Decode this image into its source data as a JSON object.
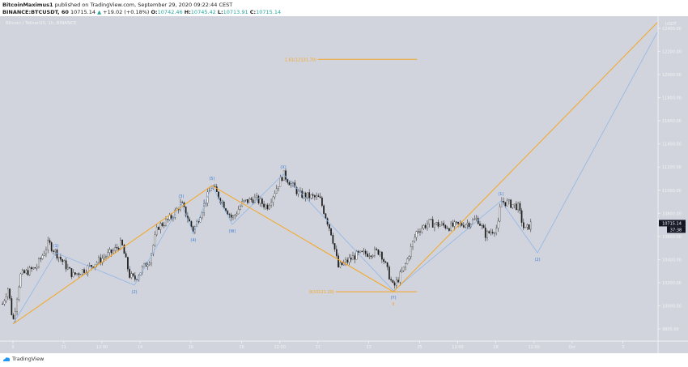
{
  "header": {
    "author": "BitcoinMaximus1",
    "published": "published on TradingView.com, September 29, 2020 09:22:44 CEST",
    "symbol": "BINANCE:BTCUSDT, 60",
    "last": "10715.14",
    "change": "+19.02 (+0.18%)",
    "o_label": "O:",
    "o": "10742.46",
    "h_label": "H:",
    "h": "10745.42",
    "l_label": "L:",
    "l": "10713.91",
    "c_label": "C:",
    "c": "10715.14"
  },
  "chart_title": "Bitcoin / TetherUS, 1h, BINANCE",
  "colors": {
    "bg": "#d1d4dc",
    "orange": "#f5a623",
    "blue": "#8fb6e8",
    "label_blue": "#3d7fd8",
    "candle": "#1a1a1a"
  },
  "chart_data": {
    "type": "candlestick",
    "price_unit": "USDT",
    "ylim": [
      9700,
      12500
    ],
    "xlim_days": [
      8.5,
      34.9
    ],
    "y_ticks": [
      "12400.00",
      "12200.00",
      "12000.00",
      "11800.00",
      "11600.00",
      "11400.00",
      "11200.00",
      "11000.00",
      "10800.00",
      "10600.00",
      "10400.00",
      "10200.00",
      "10000.00",
      "9800.00"
    ],
    "y_tick_values": [
      12400,
      12200,
      12000,
      11800,
      11600,
      11400,
      11200,
      11000,
      10800,
      10600,
      10400,
      10200,
      10000,
      9800
    ],
    "x_ticks": [
      {
        "day": 9,
        "label": "9"
      },
      {
        "day": 11,
        "label": "11"
      },
      {
        "day": 12.5,
        "label": "12:00"
      },
      {
        "day": 14,
        "label": "14"
      },
      {
        "day": 16,
        "label": "16"
      },
      {
        "day": 18,
        "label": "18"
      },
      {
        "day": 19.5,
        "label": "12:00"
      },
      {
        "day": 21,
        "label": "21"
      },
      {
        "day": 23,
        "label": "23"
      },
      {
        "day": 25,
        "label": "25"
      },
      {
        "day": 26.5,
        "label": "12:00"
      },
      {
        "day": 28,
        "label": "28"
      },
      {
        "day": 29.5,
        "label": "12:00"
      },
      {
        "day": 31,
        "label": "Oct"
      },
      {
        "day": 33,
        "label": "3"
      }
    ],
    "price_path": [
      [
        8.59,
        10017
      ],
      [
        8.81,
        10157
      ],
      [
        9.0,
        9856
      ],
      [
        9.29,
        10263
      ],
      [
        9.92,
        10333
      ],
      [
        10.4,
        10543
      ],
      [
        10.69,
        10459
      ],
      [
        11.36,
        10263
      ],
      [
        11.99,
        10333
      ],
      [
        12.95,
        10473
      ],
      [
        13.27,
        10543
      ],
      [
        13.59,
        10263
      ],
      [
        13.78,
        10228
      ],
      [
        14.38,
        10403
      ],
      [
        14.7,
        10683
      ],
      [
        15.18,
        10753
      ],
      [
        15.62,
        10886
      ],
      [
        16.1,
        10648
      ],
      [
        16.83,
        11041
      ],
      [
        17.63,
        10753
      ],
      [
        18.04,
        10893
      ],
      [
        18.52,
        10928
      ],
      [
        19.0,
        10858
      ],
      [
        19.64,
        11139
      ],
      [
        20.27,
        10963
      ],
      [
        21.07,
        10928
      ],
      [
        21.55,
        10613
      ],
      [
        21.8,
        10333
      ],
      [
        22.5,
        10438
      ],
      [
        23.46,
        10473
      ],
      [
        23.97,
        10157
      ],
      [
        24.41,
        10333
      ],
      [
        24.89,
        10648
      ],
      [
        25.37,
        10718
      ],
      [
        26.17,
        10683
      ],
      [
        26.96,
        10718
      ],
      [
        27.28,
        10753
      ],
      [
        27.6,
        10613
      ],
      [
        28.08,
        10683
      ],
      [
        28.2,
        10907
      ],
      [
        28.87,
        10858
      ],
      [
        29.13,
        10648
      ],
      [
        29.41,
        10715
      ]
    ],
    "blue_waves": [
      [
        9.0,
        9842
      ],
      [
        10.69,
        10459
      ],
      [
        13.78,
        10179
      ],
      [
        15.62,
        10886
      ],
      [
        16.1,
        10627
      ],
      [
        16.83,
        11040
      ],
      [
        17.63,
        10704
      ],
      [
        19.64,
        11139
      ],
      [
        23.97,
        10130
      ],
      [
        28.2,
        10907
      ],
      [
        29.64,
        10459
      ],
      [
        34.35,
        12365
      ]
    ],
    "orange_waves": [
      [
        9.0,
        9842
      ],
      [
        16.83,
        11040
      ],
      [
        23.97,
        10121
      ],
      [
        34.35,
        12450
      ]
    ],
    "wave_labels": [
      {
        "day": 10.69,
        "price": 10459,
        "text": "(1)",
        "pos": "above"
      },
      {
        "day": 13.78,
        "price": 10179,
        "text": "(2)",
        "pos": "below"
      },
      {
        "day": 15.62,
        "price": 10886,
        "text": "(3)",
        "pos": "above"
      },
      {
        "day": 16.1,
        "price": 10627,
        "text": "(4)",
        "pos": "below"
      },
      {
        "day": 16.83,
        "price": 11040,
        "text": "(5)",
        "pos": "above"
      },
      {
        "day": 17.63,
        "price": 10704,
        "text": "(W)",
        "pos": "below"
      },
      {
        "day": 19.64,
        "price": 11139,
        "text": "(X)",
        "pos": "above"
      },
      {
        "day": 23.97,
        "price": 10130,
        "text": "(Y)",
        "pos": "below"
      },
      {
        "day": 28.2,
        "price": 10907,
        "text": "(1)",
        "pos": "above"
      },
      {
        "day": 29.64,
        "price": 10459,
        "text": "(2)",
        "pos": "below"
      }
    ],
    "orange_labels": [
      {
        "day": 23.97,
        "price": 10121,
        "text": "II"
      }
    ],
    "fib_levels": [
      {
        "label": "1.61(12131.70)",
        "price": 12131.7,
        "from_day": 21.0,
        "to_day": 24.9
      },
      {
        "label": "0(10121.20)",
        "price": 10121.2,
        "from_day": 21.7,
        "to_day": 24.9
      }
    ],
    "last_price_label": "10715.14",
    "countdown": "37:38"
  },
  "footer": {
    "brand": "TradingView"
  }
}
